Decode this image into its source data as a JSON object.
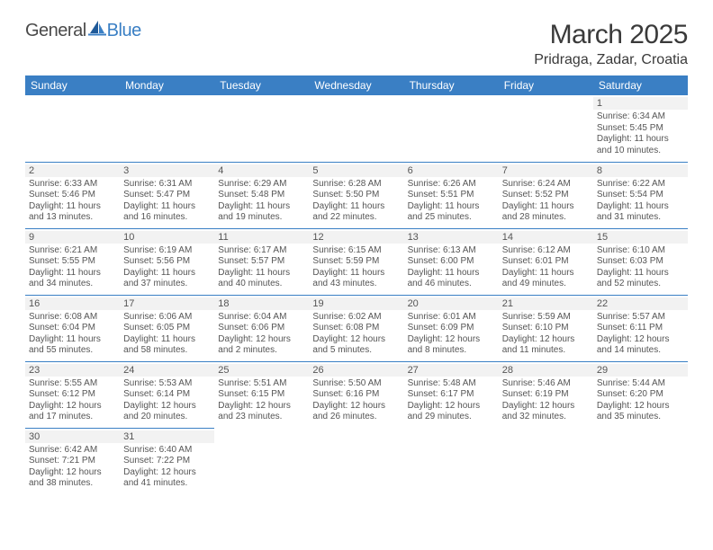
{
  "logo": {
    "text1": "General",
    "text2": "Blue"
  },
  "title": "March 2025",
  "location": "Pridraga, Zadar, Croatia",
  "colors": {
    "header_bg": "#3a7fc4",
    "header_text": "#ffffff",
    "border": "#3a7fc4",
    "daynum_bg": "#f2f2f2",
    "text": "#555555",
    "page_bg": "#ffffff"
  },
  "weekdays": [
    "Sunday",
    "Monday",
    "Tuesday",
    "Wednesday",
    "Thursday",
    "Friday",
    "Saturday"
  ],
  "weeks": [
    [
      null,
      null,
      null,
      null,
      null,
      null,
      {
        "day": "1",
        "sunrise": "Sunrise: 6:34 AM",
        "sunset": "Sunset: 5:45 PM",
        "daylight": "Daylight: 11 hours and 10 minutes."
      }
    ],
    [
      {
        "day": "2",
        "sunrise": "Sunrise: 6:33 AM",
        "sunset": "Sunset: 5:46 PM",
        "daylight": "Daylight: 11 hours and 13 minutes."
      },
      {
        "day": "3",
        "sunrise": "Sunrise: 6:31 AM",
        "sunset": "Sunset: 5:47 PM",
        "daylight": "Daylight: 11 hours and 16 minutes."
      },
      {
        "day": "4",
        "sunrise": "Sunrise: 6:29 AM",
        "sunset": "Sunset: 5:48 PM",
        "daylight": "Daylight: 11 hours and 19 minutes."
      },
      {
        "day": "5",
        "sunrise": "Sunrise: 6:28 AM",
        "sunset": "Sunset: 5:50 PM",
        "daylight": "Daylight: 11 hours and 22 minutes."
      },
      {
        "day": "6",
        "sunrise": "Sunrise: 6:26 AM",
        "sunset": "Sunset: 5:51 PM",
        "daylight": "Daylight: 11 hours and 25 minutes."
      },
      {
        "day": "7",
        "sunrise": "Sunrise: 6:24 AM",
        "sunset": "Sunset: 5:52 PM",
        "daylight": "Daylight: 11 hours and 28 minutes."
      },
      {
        "day": "8",
        "sunrise": "Sunrise: 6:22 AM",
        "sunset": "Sunset: 5:54 PM",
        "daylight": "Daylight: 11 hours and 31 minutes."
      }
    ],
    [
      {
        "day": "9",
        "sunrise": "Sunrise: 6:21 AM",
        "sunset": "Sunset: 5:55 PM",
        "daylight": "Daylight: 11 hours and 34 minutes."
      },
      {
        "day": "10",
        "sunrise": "Sunrise: 6:19 AM",
        "sunset": "Sunset: 5:56 PM",
        "daylight": "Daylight: 11 hours and 37 minutes."
      },
      {
        "day": "11",
        "sunrise": "Sunrise: 6:17 AM",
        "sunset": "Sunset: 5:57 PM",
        "daylight": "Daylight: 11 hours and 40 minutes."
      },
      {
        "day": "12",
        "sunrise": "Sunrise: 6:15 AM",
        "sunset": "Sunset: 5:59 PM",
        "daylight": "Daylight: 11 hours and 43 minutes."
      },
      {
        "day": "13",
        "sunrise": "Sunrise: 6:13 AM",
        "sunset": "Sunset: 6:00 PM",
        "daylight": "Daylight: 11 hours and 46 minutes."
      },
      {
        "day": "14",
        "sunrise": "Sunrise: 6:12 AM",
        "sunset": "Sunset: 6:01 PM",
        "daylight": "Daylight: 11 hours and 49 minutes."
      },
      {
        "day": "15",
        "sunrise": "Sunrise: 6:10 AM",
        "sunset": "Sunset: 6:03 PM",
        "daylight": "Daylight: 11 hours and 52 minutes."
      }
    ],
    [
      {
        "day": "16",
        "sunrise": "Sunrise: 6:08 AM",
        "sunset": "Sunset: 6:04 PM",
        "daylight": "Daylight: 11 hours and 55 minutes."
      },
      {
        "day": "17",
        "sunrise": "Sunrise: 6:06 AM",
        "sunset": "Sunset: 6:05 PM",
        "daylight": "Daylight: 11 hours and 58 minutes."
      },
      {
        "day": "18",
        "sunrise": "Sunrise: 6:04 AM",
        "sunset": "Sunset: 6:06 PM",
        "daylight": "Daylight: 12 hours and 2 minutes."
      },
      {
        "day": "19",
        "sunrise": "Sunrise: 6:02 AM",
        "sunset": "Sunset: 6:08 PM",
        "daylight": "Daylight: 12 hours and 5 minutes."
      },
      {
        "day": "20",
        "sunrise": "Sunrise: 6:01 AM",
        "sunset": "Sunset: 6:09 PM",
        "daylight": "Daylight: 12 hours and 8 minutes."
      },
      {
        "day": "21",
        "sunrise": "Sunrise: 5:59 AM",
        "sunset": "Sunset: 6:10 PM",
        "daylight": "Daylight: 12 hours and 11 minutes."
      },
      {
        "day": "22",
        "sunrise": "Sunrise: 5:57 AM",
        "sunset": "Sunset: 6:11 PM",
        "daylight": "Daylight: 12 hours and 14 minutes."
      }
    ],
    [
      {
        "day": "23",
        "sunrise": "Sunrise: 5:55 AM",
        "sunset": "Sunset: 6:12 PM",
        "daylight": "Daylight: 12 hours and 17 minutes."
      },
      {
        "day": "24",
        "sunrise": "Sunrise: 5:53 AM",
        "sunset": "Sunset: 6:14 PM",
        "daylight": "Daylight: 12 hours and 20 minutes."
      },
      {
        "day": "25",
        "sunrise": "Sunrise: 5:51 AM",
        "sunset": "Sunset: 6:15 PM",
        "daylight": "Daylight: 12 hours and 23 minutes."
      },
      {
        "day": "26",
        "sunrise": "Sunrise: 5:50 AM",
        "sunset": "Sunset: 6:16 PM",
        "daylight": "Daylight: 12 hours and 26 minutes."
      },
      {
        "day": "27",
        "sunrise": "Sunrise: 5:48 AM",
        "sunset": "Sunset: 6:17 PM",
        "daylight": "Daylight: 12 hours and 29 minutes."
      },
      {
        "day": "28",
        "sunrise": "Sunrise: 5:46 AM",
        "sunset": "Sunset: 6:19 PM",
        "daylight": "Daylight: 12 hours and 32 minutes."
      },
      {
        "day": "29",
        "sunrise": "Sunrise: 5:44 AM",
        "sunset": "Sunset: 6:20 PM",
        "daylight": "Daylight: 12 hours and 35 minutes."
      }
    ],
    [
      {
        "day": "30",
        "sunrise": "Sunrise: 6:42 AM",
        "sunset": "Sunset: 7:21 PM",
        "daylight": "Daylight: 12 hours and 38 minutes."
      },
      {
        "day": "31",
        "sunrise": "Sunrise: 6:40 AM",
        "sunset": "Sunset: 7:22 PM",
        "daylight": "Daylight: 12 hours and 41 minutes."
      },
      null,
      null,
      null,
      null,
      null
    ]
  ]
}
